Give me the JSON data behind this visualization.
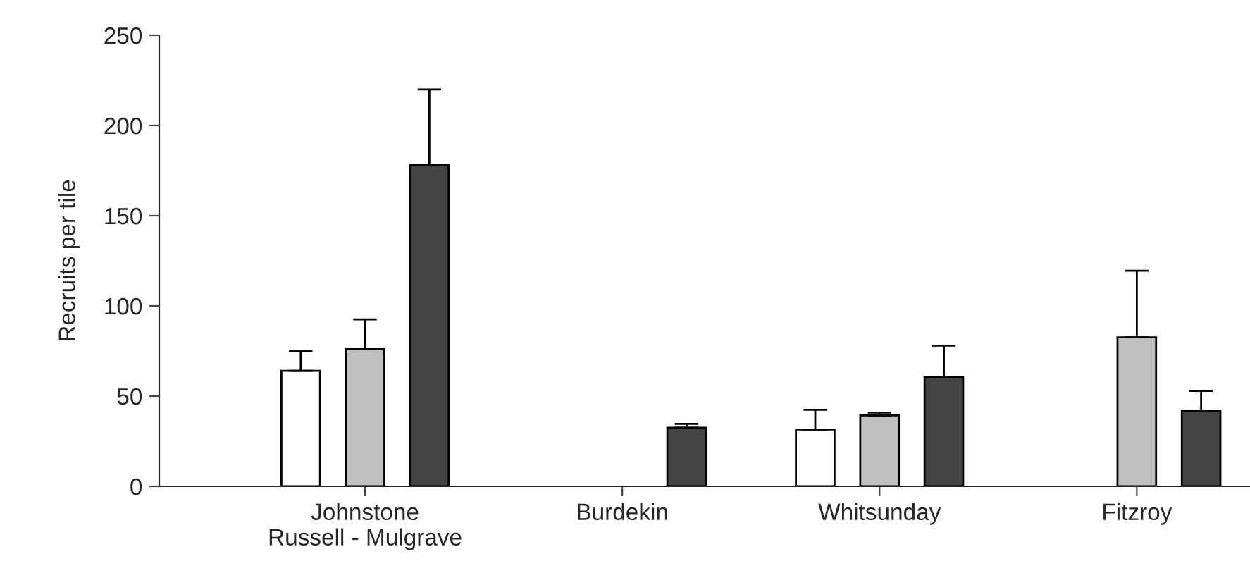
{
  "chart_data": {
    "type": "bar",
    "ylabel": "Recruits per tile",
    "categories": [
      "Johnstone\nRussell - Mulgrave",
      "Burdekin",
      "Whitsunday",
      "Fitzroy"
    ],
    "series": [
      {
        "color": "#ffffff",
        "values": [
          64,
          null,
          31.5,
          null
        ],
        "errors": [
          [
            64,
            75
          ],
          null,
          [
            31.5,
            42.4
          ],
          null
        ]
      },
      {
        "color": "#c0c0c0",
        "values": [
          76,
          null,
          39.3,
          82.6
        ],
        "errors": [
          [
            76,
            92.5
          ],
          null,
          [
            39.3,
            40.9
          ],
          [
            82.6,
            119.5
          ]
        ]
      },
      {
        "color": "#444444",
        "values": [
          178,
          32.5,
          60.4,
          41.9
        ],
        "errors": [
          [
            178,
            220
          ],
          [
            32.5,
            34.6
          ],
          [
            60.4,
            78
          ],
          [
            41.9,
            52.9
          ]
        ]
      }
    ],
    "ylim": [
      0,
      250
    ],
    "yticks": [
      0,
      50,
      100,
      150,
      200,
      250
    ],
    "grid": false,
    "legend": false
  }
}
